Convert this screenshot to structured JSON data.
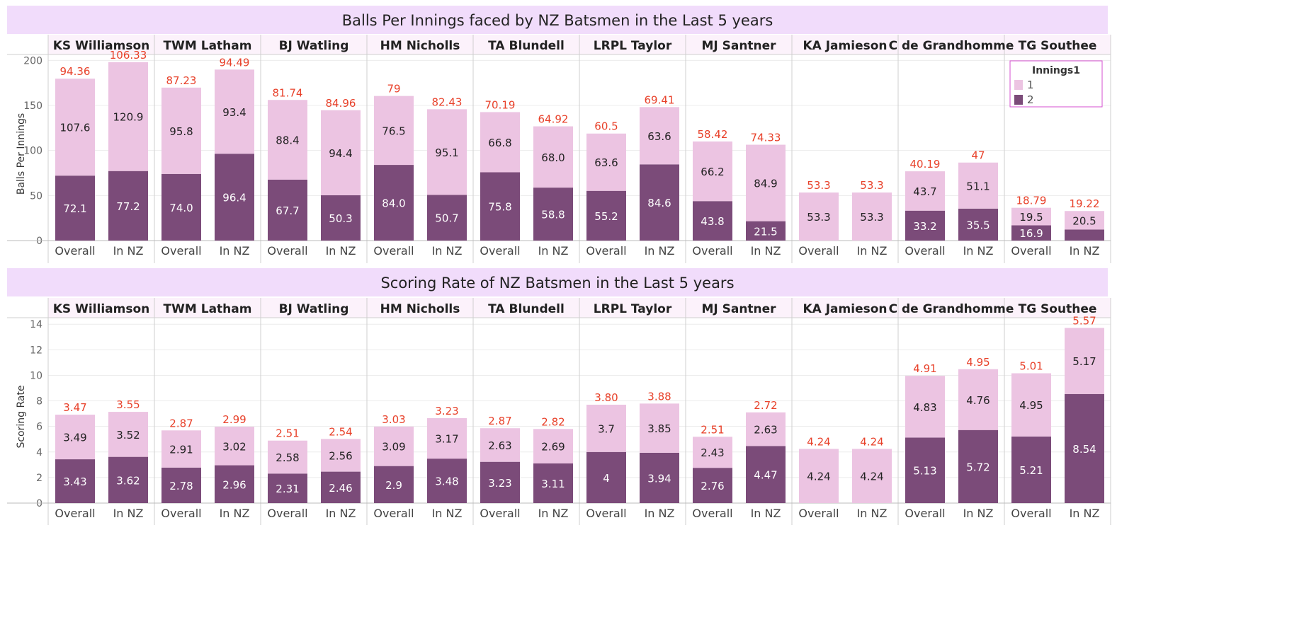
{
  "colors": {
    "series_1": "#ecc4e2",
    "series_2": "#7b4b79",
    "total_label": "#e8412a",
    "title_band": "#f1dcfb",
    "header_band": "#fcf2fb",
    "grid": "#ececec",
    "panel_border": "#cfcfcf"
  },
  "legend": {
    "title": "Innings1",
    "items": [
      {
        "label": "1",
        "color": "#ecc4e2"
      },
      {
        "label": "2",
        "color": "#7b4b79"
      }
    ]
  },
  "chart_data": [
    {
      "type": "bar",
      "stacked": true,
      "title": "Balls Per Innings faced by NZ Batsmen in the Last 5 years",
      "ylabel": "Balls Per Innings",
      "ylim": [
        0,
        205
      ],
      "yticks": [
        0,
        50,
        100,
        150,
        200
      ],
      "grid": true,
      "legend_position": "top-right",
      "players": [
        "KS Williamson",
        "TWM Latham",
        "BJ Watling",
        "HM Nicholls",
        "TA Blundell",
        "LRPL Taylor",
        "MJ Santner",
        "KA Jamieson",
        "C de Grandhomme",
        "TG Southee"
      ],
      "categories": [
        "Overall",
        "In NZ"
      ],
      "series": [
        {
          "name": "2",
          "values": [
            [
              72.1,
              77.2
            ],
            [
              74.0,
              96.4
            ],
            [
              67.7,
              50.3
            ],
            [
              84.0,
              50.7
            ],
            [
              75.8,
              58.8
            ],
            [
              55.2,
              84.6
            ],
            [
              43.8,
              21.5
            ],
            [
              0,
              0
            ],
            [
              33.2,
              35.5
            ],
            [
              16.9,
              12.3
            ]
          ],
          "labels": [
            [
              "72.1",
              "77.2"
            ],
            [
              "74.0",
              "96.4"
            ],
            [
              "67.7",
              "50.3"
            ],
            [
              "84.0",
              "50.7"
            ],
            [
              "75.8",
              "58.8"
            ],
            [
              "55.2",
              "84.6"
            ],
            [
              "43.8",
              "21.5"
            ],
            [
              "",
              ""
            ],
            [
              "33.2",
              "35.5"
            ],
            [
              "16.9",
              ""
            ]
          ]
        },
        {
          "name": "1",
          "values": [
            [
              107.6,
              120.9
            ],
            [
              95.8,
              93.4
            ],
            [
              88.4,
              94.4
            ],
            [
              76.5,
              95.1
            ],
            [
              66.8,
              68.0
            ],
            [
              63.6,
              63.6
            ],
            [
              66.2,
              84.9
            ],
            [
              53.3,
              53.3
            ],
            [
              43.7,
              51.1
            ],
            [
              19.5,
              20.5
            ]
          ],
          "labels": [
            [
              "107.6",
              "120.9"
            ],
            [
              "95.8",
              "93.4"
            ],
            [
              "88.4",
              "94.4"
            ],
            [
              "76.5",
              "95.1"
            ],
            [
              "66.8",
              "68.0"
            ],
            [
              "63.6",
              "63.6"
            ],
            [
              "66.2",
              "84.9"
            ],
            [
              "53.3",
              "53.3"
            ],
            [
              "43.7",
              "51.1"
            ],
            [
              "19.5",
              "20.5"
            ]
          ]
        }
      ],
      "totals": [
        [
          "94.36",
          "106.33"
        ],
        [
          "87.23",
          "94.49"
        ],
        [
          "81.74",
          "84.96"
        ],
        [
          "79",
          "82.43"
        ],
        [
          "70.19",
          "64.92"
        ],
        [
          "60.5",
          "69.41"
        ],
        [
          "58.42",
          "74.33"
        ],
        [
          "53.3",
          "53.3"
        ],
        [
          "40.19",
          "47"
        ],
        [
          "18.79",
          "19.22"
        ]
      ]
    },
    {
      "type": "bar",
      "stacked": true,
      "title": "Scoring Rate of NZ Batsmen in the Last 5 years",
      "ylabel": "Scoring Rate",
      "ylim": [
        0,
        14.4
      ],
      "yticks": [
        0,
        2,
        4,
        6,
        8,
        10,
        12,
        14
      ],
      "grid": true,
      "players": [
        "KS Williamson",
        "TWM Latham",
        "BJ Watling",
        "HM Nicholls",
        "TA Blundell",
        "LRPL Taylor",
        "MJ Santner",
        "KA Jamieson",
        "C de Grandhomme",
        "TG Southee"
      ],
      "categories": [
        "Overall",
        "In NZ"
      ],
      "series": [
        {
          "name": "2",
          "values": [
            [
              3.43,
              3.62
            ],
            [
              2.78,
              2.96
            ],
            [
              2.31,
              2.46
            ],
            [
              2.9,
              3.48
            ],
            [
              3.23,
              3.11
            ],
            [
              4,
              3.94
            ],
            [
              2.76,
              4.47
            ],
            [
              0,
              0
            ],
            [
              5.13,
              5.72
            ],
            [
              5.21,
              8.54
            ]
          ],
          "labels": [
            [
              "3.43",
              "3.62"
            ],
            [
              "2.78",
              "2.96"
            ],
            [
              "2.31",
              "2.46"
            ],
            [
              "2.9",
              "3.48"
            ],
            [
              "3.23",
              "3.11"
            ],
            [
              "4",
              "3.94"
            ],
            [
              "2.76",
              "4.47"
            ],
            [
              "",
              ""
            ],
            [
              "5.13",
              "5.72"
            ],
            [
              "5.21",
              "8.54"
            ]
          ]
        },
        {
          "name": "1",
          "values": [
            [
              3.49,
              3.52
            ],
            [
              2.91,
              3.02
            ],
            [
              2.58,
              2.56
            ],
            [
              3.09,
              3.17
            ],
            [
              2.63,
              2.69
            ],
            [
              3.7,
              3.85
            ],
            [
              2.43,
              2.63
            ],
            [
              4.24,
              4.24
            ],
            [
              4.83,
              4.76
            ],
            [
              4.95,
              5.17
            ]
          ],
          "labels": [
            [
              "3.49",
              "3.52"
            ],
            [
              "2.91",
              "3.02"
            ],
            [
              "2.58",
              "2.56"
            ],
            [
              "3.09",
              "3.17"
            ],
            [
              "2.63",
              "2.69"
            ],
            [
              "3.7",
              "3.85"
            ],
            [
              "2.43",
              "2.63"
            ],
            [
              "4.24",
              "4.24"
            ],
            [
              "4.83",
              "4.76"
            ],
            [
              "4.95",
              "5.17"
            ]
          ]
        }
      ],
      "totals": [
        [
          "3.47",
          "3.55"
        ],
        [
          "2.87",
          "2.99"
        ],
        [
          "2.51",
          "2.54"
        ],
        [
          "3.03",
          "3.23"
        ],
        [
          "2.87",
          "2.82"
        ],
        [
          "3.80",
          "3.88"
        ],
        [
          "2.51",
          "2.72"
        ],
        [
          "4.24",
          "4.24"
        ],
        [
          "4.91",
          "4.95"
        ],
        [
          "5.01",
          "5.57"
        ]
      ]
    }
  ]
}
